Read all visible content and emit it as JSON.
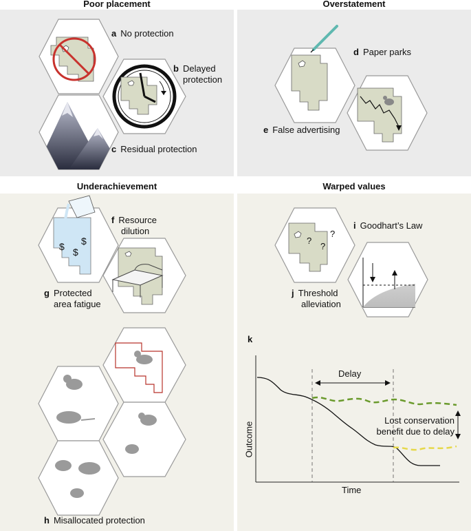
{
  "sections": {
    "poor_placement": "Poor placement",
    "overstatement": "Overstatement",
    "underachievement": "Underachievement",
    "warped_values": "Warped values"
  },
  "items": {
    "a": {
      "letter": "a",
      "text": "No protection"
    },
    "b": {
      "letter": "b",
      "line1": "Delayed",
      "line2": "protection"
    },
    "c": {
      "letter": "c",
      "text": "Residual protection"
    },
    "d": {
      "letter": "d",
      "text": "Paper parks"
    },
    "e": {
      "letter": "e",
      "text": "False advertising"
    },
    "f": {
      "letter": "f",
      "line1": "Resource",
      "line2": "dilution"
    },
    "g": {
      "letter": "g",
      "line1": "Protected",
      "line2": "area fatigue"
    },
    "h": {
      "letter": "h",
      "text": "Misallocated protection"
    },
    "i": {
      "letter": "i",
      "text": "Goodhart’s Law"
    },
    "j": {
      "letter": "j",
      "line1": "Threshold",
      "line2": "alleviation"
    }
  },
  "dollar_sign": "$",
  "question_mark": "?",
  "graph": {
    "panel_letter": "k",
    "delay_label": "Delay",
    "lost_line1": "Lost conservation",
    "lost_line2": "benefit due to delay",
    "ylabel": "Outcome",
    "xlabel": "Time"
  },
  "colors": {
    "panel_bg_top": "#ebebeb",
    "panel_bg_bottom": "#f2f1ea",
    "land": "#d8dbc6",
    "water": "#cfe6f5",
    "prohibit_red": "#c8322d",
    "boundary_red": "#b8322a",
    "green_dashed": "#6a9a2c",
    "yellow_dashed": "#e6d84a"
  }
}
